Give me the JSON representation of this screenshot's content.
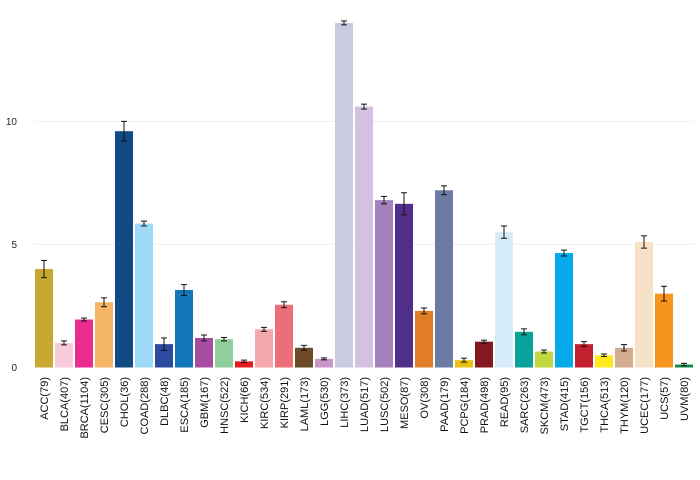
{
  "chart_data": {
    "type": "bar",
    "title": "",
    "xlabel": "",
    "ylabel": "",
    "ylim": [
      0,
      14.2
    ],
    "yticks": [
      0,
      5,
      10
    ],
    "grid": true,
    "error_bars": true,
    "categories": [
      "ACC(79)",
      "BLCA(407)",
      "BRCA(1104)",
      "CESC(305)",
      "CHOL(36)",
      "COAD(288)",
      "DLBC(48)",
      "ESCA(185)",
      "GBM(167)",
      "HNSC(522)",
      "KICH(66)",
      "KIRC(534)",
      "KIRP(291)",
      "LAML(173)",
      "LGG(530)",
      "LIHC(373)",
      "LUAD(517)",
      "LUSC(502)",
      "MESO(87)",
      "OV(308)",
      "PAAD(179)",
      "PCPG(184)",
      "PRAD(498)",
      "READ(95)",
      "SARC(263)",
      "SKCM(473)",
      "STAD(415)",
      "TGCT(156)",
      "THCA(513)",
      "THYM(120)",
      "UCEC(177)",
      "UCS(57)",
      "UVM(80)"
    ],
    "values": [
      4.0,
      1.0,
      1.95,
      2.65,
      9.6,
      5.85,
      0.95,
      3.15,
      1.2,
      1.15,
      0.25,
      1.55,
      2.55,
      0.8,
      0.35,
      14.0,
      10.6,
      6.8,
      6.65,
      2.3,
      7.2,
      0.3,
      1.05,
      5.5,
      1.45,
      0.65,
      4.65,
      0.95,
      0.5,
      0.8,
      5.1,
      3.0,
      0.12
    ],
    "errors": [
      0.35,
      0.08,
      0.06,
      0.18,
      0.4,
      0.1,
      0.25,
      0.22,
      0.12,
      0.07,
      0.05,
      0.08,
      0.12,
      0.1,
      0.04,
      0.08,
      0.1,
      0.15,
      0.45,
      0.12,
      0.18,
      0.08,
      0.06,
      0.25,
      0.12,
      0.06,
      0.12,
      0.1,
      0.05,
      0.13,
      0.25,
      0.3,
      0.05
    ],
    "colors": [
      "#c8a831",
      "#f8cdd9",
      "#ea2b8f",
      "#f4b567",
      "#124a84",
      "#9ed9f8",
      "#2b4aa0",
      "#1177b8",
      "#a64d9f",
      "#8fcf9a",
      "#e31b1f",
      "#f4a7ad",
      "#ec6f78",
      "#6c4a26",
      "#c895c8",
      "#c9ccde",
      "#d4c0e0",
      "#a381bc",
      "#512e89",
      "#e17d26",
      "#6c7ba3",
      "#e9bf16",
      "#821822",
      "#d6ecf8",
      "#08a29b",
      "#c1d742",
      "#06a9ea",
      "#c3202f",
      "#ffea1e",
      "#d3ab8e",
      "#f7e1c7",
      "#f7941e",
      "#078d47"
    ]
  }
}
